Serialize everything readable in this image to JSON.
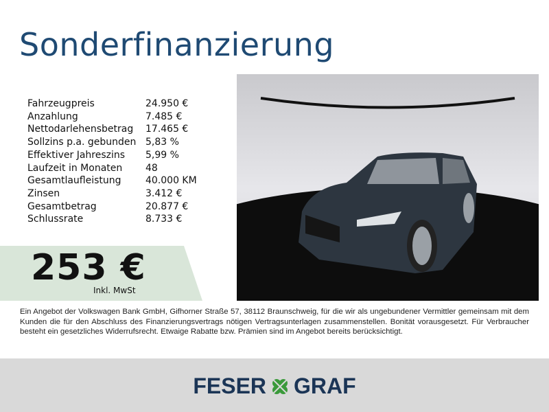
{
  "title": "Sonderfinanzierung",
  "specs": [
    {
      "label": "Fahrzeugpreis",
      "value": "24.950 €"
    },
    {
      "label": "Anzahlung",
      "value": "7.485 €"
    },
    {
      "label": "Nettodarlehensbetrag",
      "value": "17.465 €"
    },
    {
      "label": "Sollzins p.a. gebunden",
      "value": "5,83 %"
    },
    {
      "label": "Effektiver Jahreszins",
      "value": "5,99 %"
    },
    {
      "label": "Laufzeit in Monaten",
      "value": "48"
    },
    {
      "label": "Gesamtlaufleistung",
      "value": "40.000 KM"
    },
    {
      "label": "Zinsen",
      "value": "3.412 €"
    },
    {
      "label": "Gesamtbetrag",
      "value": "20.877 €"
    },
    {
      "label": "Schlussrate",
      "value": "8.733 €"
    }
  ],
  "rate": {
    "amount": "253 €",
    "note": "Inkl. MwSt"
  },
  "disclaimer": "Ein Angebot der Volkswagen Bank GmbH, Gifhorner Straße 57, 38112 Braunschweig, für die wir als ungebundener Vermittler gemeinsam mit dem Kunden die für den Abschluss des Finanzierungsvertrags nötigen Vertragsunterlagen zusammenstellen. Bonität vorausgesetzt. Für Verbraucher besteht ein gesetzliches Widerrufsrecht. Etwaige Rabatte bzw. Prämien sind im Angebot bereits berücksichtigt.",
  "logo": {
    "left": "FESER",
    "right": "GRAF",
    "icon": "clover-icon"
  },
  "colors": {
    "title": "#1f4a73",
    "banner": "#d9e6d9",
    "footer": "#d9d9d9",
    "logo": "#1b3556",
    "clover": "#3a9a3a"
  }
}
